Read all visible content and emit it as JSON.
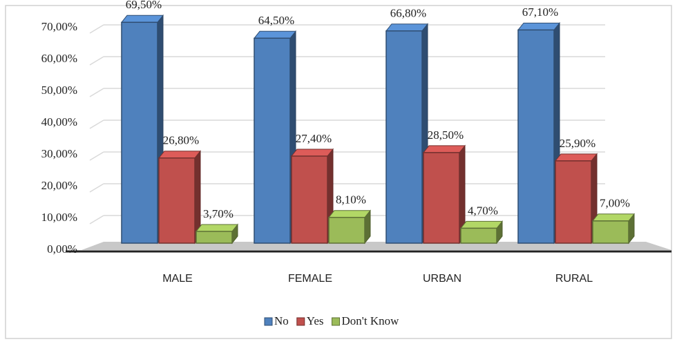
{
  "chart_data": {
    "type": "bar3d",
    "categories": [
      "MALE",
      "FEMALE",
      "URBAN",
      "RURAL"
    ],
    "series": [
      {
        "name": "No",
        "color": "#4f81bd",
        "values": [
          69.5,
          64.5,
          66.8,
          67.1
        ],
        "value_labels": [
          "69,50%",
          "64,50%",
          "66,80%",
          "67,10%"
        ]
      },
      {
        "name": "Yes",
        "color": "#c0504d",
        "values": [
          26.8,
          27.4,
          28.5,
          25.9
        ],
        "value_labels": [
          "26,80%",
          "27,40%",
          "28,50%",
          "25,90%"
        ]
      },
      {
        "name": "Don't Know",
        "color": "#9bbb59",
        "values": [
          3.7,
          8.1,
          4.7,
          7.0
        ],
        "value_labels": [
          "3,70%",
          "8,10%",
          "4,70%",
          "7,00%"
        ]
      }
    ],
    "ylim": [
      0,
      70
    ],
    "yticks": [
      {
        "value": 0,
        "label": "0,00%"
      },
      {
        "value": 10,
        "label": "10,00%"
      },
      {
        "value": 20,
        "label": "20,00%"
      },
      {
        "value": 30,
        "label": "30,00%"
      },
      {
        "value": 40,
        "label": "40,00%"
      },
      {
        "value": 50,
        "label": "50,00%"
      },
      {
        "value": 60,
        "label": "60,00%"
      },
      {
        "value": 70,
        "label": "70,00%"
      }
    ],
    "grid": true,
    "legend": "bottom"
  }
}
